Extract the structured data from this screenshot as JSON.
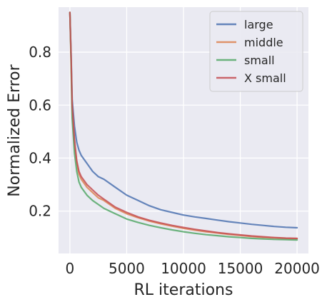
{
  "chart_data": {
    "type": "line",
    "title": "",
    "xlabel": "RL iterations",
    "ylabel": "Normalized Error",
    "xlim": [
      -1000,
      21000
    ],
    "ylim": [
      0.04,
      0.97
    ],
    "x_ticks": [
      0,
      5000,
      10000,
      15000,
      20000
    ],
    "y_ticks": [
      0.2,
      0.4,
      0.6,
      0.8
    ],
    "x_tick_labels": [
      "0",
      "5000",
      "10000",
      "15000",
      "20000"
    ],
    "y_tick_labels": [
      "0.2",
      "0.4",
      "0.6",
      "0.8"
    ],
    "grid": true,
    "legend_position": "top-right",
    "style": {
      "background": "#eaeaf2",
      "gridline": "#ffffff"
    },
    "series": [
      {
        "name": "large",
        "color": "#4c72b0",
        "x": [
          0,
          100,
          200,
          400,
          600,
          800,
          1000,
          1500,
          2000,
          2500,
          3000,
          4000,
          5000,
          6000,
          7000,
          8000,
          9000,
          10000,
          11000,
          12000,
          13000,
          14000,
          15000,
          16000,
          17000,
          18000,
          19000,
          20000
        ],
        "values": [
          0.95,
          0.8,
          0.62,
          0.52,
          0.46,
          0.43,
          0.41,
          0.38,
          0.35,
          0.33,
          0.32,
          0.29,
          0.26,
          0.24,
          0.22,
          0.205,
          0.195,
          0.185,
          0.178,
          0.172,
          0.166,
          0.16,
          0.155,
          0.15,
          0.146,
          0.142,
          0.139,
          0.137
        ]
      },
      {
        "name": "middle",
        "color": "#dd8452",
        "x": [
          0,
          100,
          200,
          400,
          600,
          800,
          1000,
          1500,
          2000,
          2500,
          3000,
          4000,
          5000,
          6000,
          7000,
          8000,
          9000,
          10000,
          11000,
          12000,
          13000,
          14000,
          15000,
          16000,
          17000,
          18000,
          19000,
          20000
        ],
        "values": [
          0.95,
          0.78,
          0.58,
          0.45,
          0.38,
          0.34,
          0.32,
          0.29,
          0.27,
          0.25,
          0.24,
          0.21,
          0.19,
          0.175,
          0.162,
          0.152,
          0.143,
          0.135,
          0.128,
          0.122,
          0.117,
          0.112,
          0.108,
          0.104,
          0.101,
          0.099,
          0.097,
          0.096
        ]
      },
      {
        "name": "small",
        "color": "#55a868",
        "x": [
          0,
          100,
          200,
          400,
          600,
          800,
          1000,
          1500,
          2000,
          2500,
          3000,
          4000,
          5000,
          6000,
          7000,
          8000,
          9000,
          10000,
          11000,
          12000,
          13000,
          14000,
          15000,
          16000,
          17000,
          18000,
          19000,
          20000
        ],
        "values": [
          0.95,
          0.76,
          0.55,
          0.42,
          0.35,
          0.31,
          0.29,
          0.26,
          0.24,
          0.225,
          0.21,
          0.19,
          0.17,
          0.157,
          0.146,
          0.137,
          0.129,
          0.122,
          0.116,
          0.111,
          0.107,
          0.103,
          0.1,
          0.097,
          0.095,
          0.093,
          0.092,
          0.091
        ]
      },
      {
        "name": "X small",
        "color": "#c44e52",
        "x": [
          0,
          100,
          200,
          400,
          600,
          800,
          1000,
          1500,
          2000,
          2500,
          3000,
          4000,
          5000,
          6000,
          7000,
          8000,
          9000,
          10000,
          11000,
          12000,
          13000,
          14000,
          15000,
          16000,
          17000,
          18000,
          19000,
          20000
        ],
        "values": [
          0.95,
          0.79,
          0.6,
          0.47,
          0.39,
          0.35,
          0.33,
          0.3,
          0.28,
          0.26,
          0.245,
          0.215,
          0.195,
          0.178,
          0.165,
          0.155,
          0.146,
          0.138,
          0.131,
          0.125,
          0.119,
          0.114,
          0.11,
          0.106,
          0.103,
          0.1,
          0.098,
          0.097
        ]
      }
    ]
  }
}
